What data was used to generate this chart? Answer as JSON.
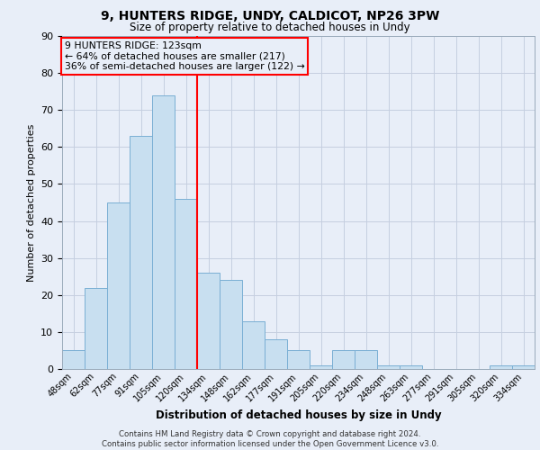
{
  "title1": "9, HUNTERS RIDGE, UNDY, CALDICOT, NP26 3PW",
  "title2": "Size of property relative to detached houses in Undy",
  "xlabel": "Distribution of detached houses by size in Undy",
  "ylabel": "Number of detached properties",
  "categories": [
    "48sqm",
    "62sqm",
    "77sqm",
    "91sqm",
    "105sqm",
    "120sqm",
    "134sqm",
    "148sqm",
    "162sqm",
    "177sqm",
    "191sqm",
    "205sqm",
    "220sqm",
    "234sqm",
    "248sqm",
    "263sqm",
    "277sqm",
    "291sqm",
    "305sqm",
    "320sqm",
    "334sqm"
  ],
  "values": [
    5,
    22,
    45,
    63,
    74,
    46,
    26,
    24,
    13,
    8,
    5,
    1,
    5,
    5,
    1,
    1,
    0,
    0,
    0,
    1,
    1
  ],
  "bar_color": "#c8dff0",
  "bar_edge_color": "#7aafd4",
  "vline_x": 5.5,
  "vline_color": "red",
  "ylim": [
    0,
    90
  ],
  "yticks": [
    0,
    10,
    20,
    30,
    40,
    50,
    60,
    70,
    80,
    90
  ],
  "annotation_box_text": "9 HUNTERS RIDGE: 123sqm\n← 64% of detached houses are smaller (217)\n36% of semi-detached houses are larger (122) →",
  "annotation_box_color": "red",
  "footnote": "Contains HM Land Registry data © Crown copyright and database right 2024.\nContains public sector information licensed under the Open Government Licence v3.0.",
  "bg_color": "#e8eef8",
  "grid_color": "#c5cfe0"
}
